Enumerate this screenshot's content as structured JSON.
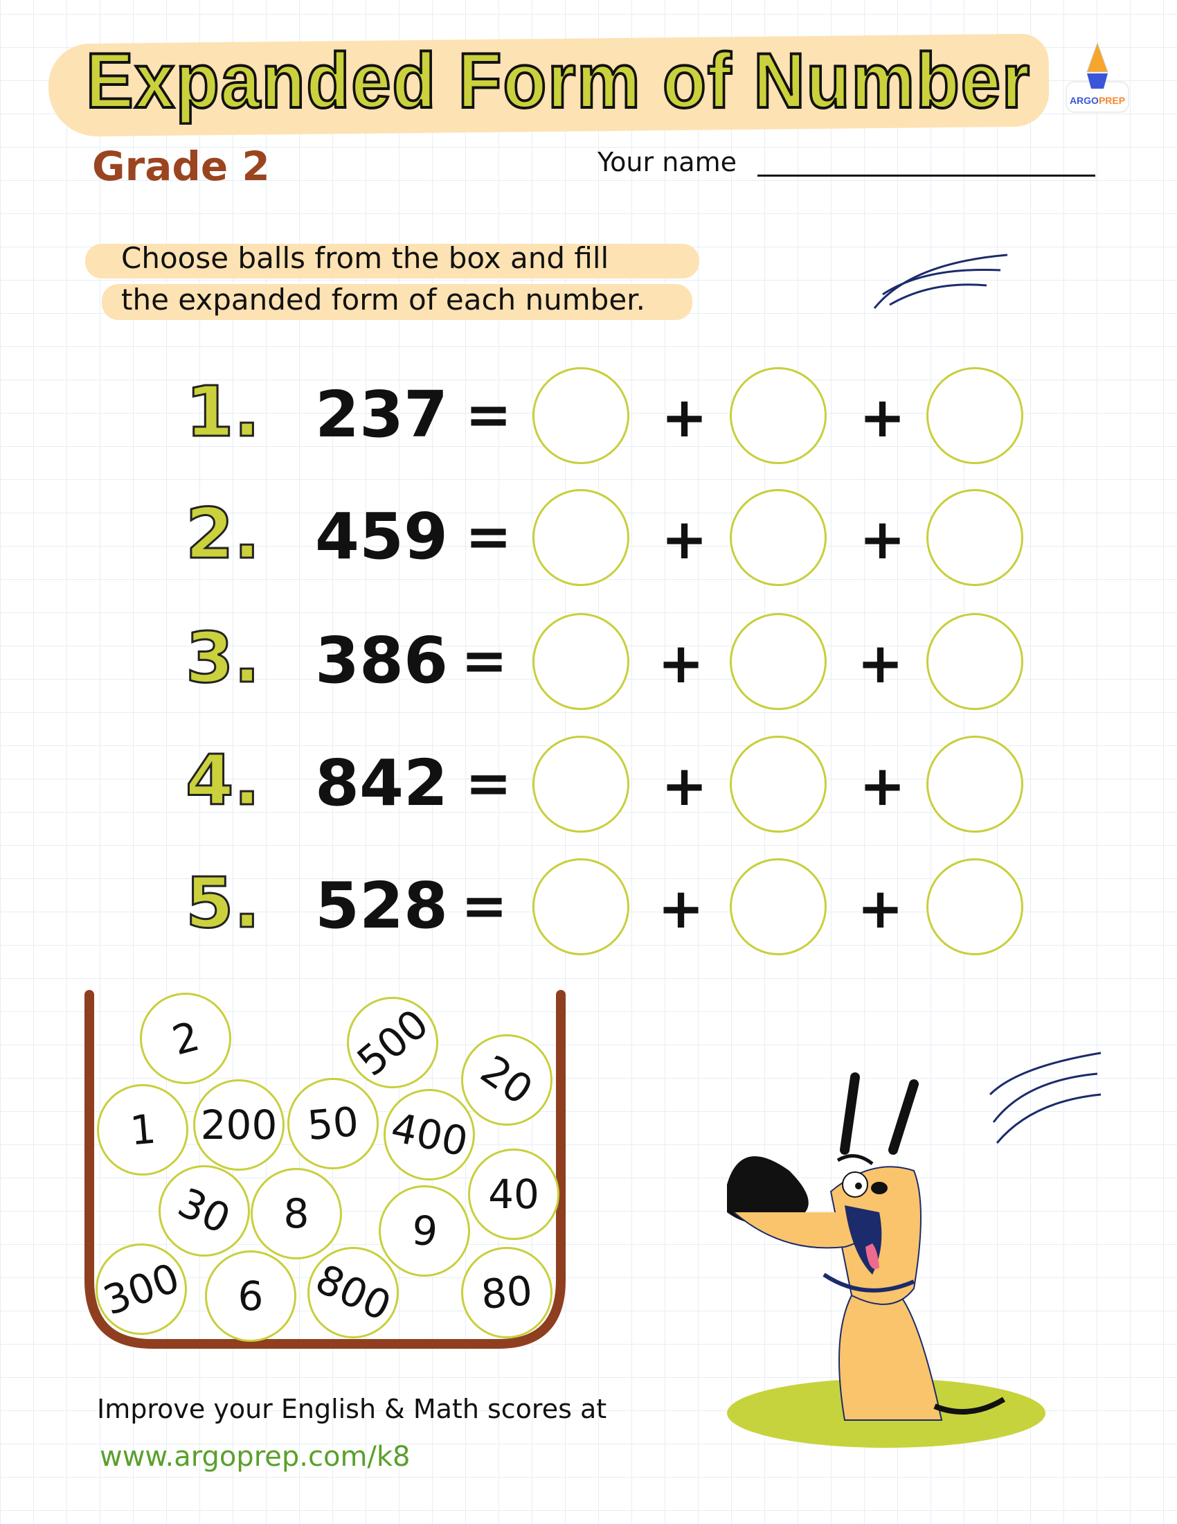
{
  "header": {
    "title": "Expanded Form of Number",
    "grade": "Grade 2",
    "name_label": "Your name",
    "logo_text": "ARGOPREP"
  },
  "instructions": {
    "line1": "Choose balls from the box and fill",
    "line2": "the expanded form of each number."
  },
  "problems": [
    {
      "label": "1.",
      "number": "237"
    },
    {
      "label": "2.",
      "number": "459"
    },
    {
      "label": "3.",
      "number": "386"
    },
    {
      "label": "4.",
      "number": "842"
    },
    {
      "label": "5.",
      "number": "528"
    }
  ],
  "symbols": {
    "equals": "=",
    "plus": "+"
  },
  "balls": [
    "2",
    "500",
    "20",
    "1",
    "200",
    "50",
    "400",
    "40",
    "30",
    "8",
    "9",
    "300",
    "6",
    "800",
    "80"
  ],
  "footer": {
    "text": "Improve your English & Math scores at",
    "url": "www.argoprep.com/k8"
  },
  "colors": {
    "title_fill": "#cbd13c",
    "band": "#fde2b3",
    "grade": "#9a4520",
    "box": "#8f3f1f",
    "ball_outline": "#c8cf3c",
    "url": "#5aa02c"
  }
}
